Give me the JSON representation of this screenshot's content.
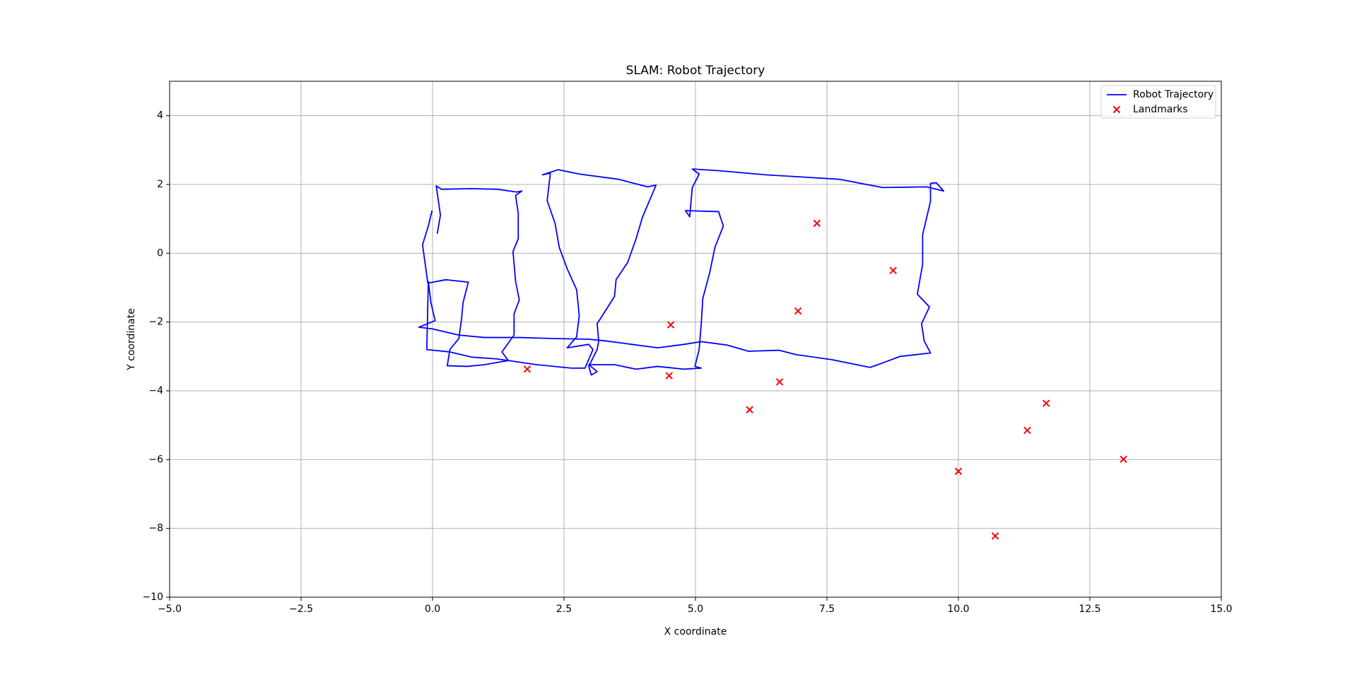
{
  "chart_data": {
    "type": "line",
    "title": "SLAM: Robot Trajectory",
    "x_label": "X coordinate",
    "y_label": "Y coordinate",
    "xlim": [
      -5,
      15
    ],
    "ylim": [
      -10,
      5
    ],
    "xticks": [
      {
        "value": -5,
        "label": "−5.0"
      },
      {
        "value": -2.5,
        "label": "−2.5"
      },
      {
        "value": 0,
        "label": "0.0"
      },
      {
        "value": 2.5,
        "label": "2.5"
      },
      {
        "value": 5,
        "label": "5.0"
      },
      {
        "value": 7.5,
        "label": "7.5"
      },
      {
        "value": 10,
        "label": "10.0"
      },
      {
        "value": 12.5,
        "label": "12.5"
      },
      {
        "value": 15,
        "label": "15.0"
      }
    ],
    "yticks": [
      {
        "value": -10,
        "label": "−10"
      },
      {
        "value": -8,
        "label": "−8"
      },
      {
        "value": -6,
        "label": "−6"
      },
      {
        "value": -4,
        "label": "−4"
      },
      {
        "value": -2,
        "label": "−2"
      },
      0,
      2,
      4
    ],
    "grid": true,
    "legend": "upper right",
    "series": [
      {
        "name": "Robot Trajectory",
        "color": "#0000ff",
        "type": "line",
        "x": [
          0.09,
          0.15,
          0.07,
          0.17,
          0.74,
          1.24,
          1.6,
          1.7,
          1.58,
          1.63,
          1.63,
          1.53,
          1.58,
          1.65,
          1.55,
          1.55,
          1.32,
          1.44,
          1.21,
          0.74,
          0.33,
          -0.11,
          -0.08,
          -0.03,
          0.05,
          -0.26,
          0.0,
          0.5,
          0.99,
          1.65,
          2.31,
          2.97,
          3.3,
          3.79,
          4.28,
          4.78,
          5.11,
          5.6,
          6.01,
          6.59,
          6.92,
          7.58,
          8.32,
          8.56,
          8.89,
          9.47,
          9.35,
          9.3,
          9.45,
          9.22,
          9.32,
          9.32,
          9.47,
          9.47,
          9.58,
          9.72,
          9.39,
          8.56,
          7.74,
          6.34,
          5.44,
          4.94,
          5.07,
          4.94,
          4.89,
          4.81,
          5.44,
          5.53,
          5.37,
          5.27,
          5.14,
          5.11,
          5.07,
          4.99,
          5.11,
          4.78,
          4.28,
          3.87,
          3.46,
          2.97,
          3.13,
          3.02,
          2.97,
          3.13,
          3.16,
          3.13,
          3.46,
          3.49,
          3.71,
          3.87,
          3.99,
          4.25,
          4.09,
          3.54,
          2.8,
          2.39,
          2.09,
          2.24,
          2.18,
          2.33,
          2.41,
          2.56,
          2.74,
          2.79,
          2.74,
          2.56,
          2.97,
          3.05,
          2.9,
          2.64,
          1.98,
          1.44,
          0.99,
          0.66,
          0.28,
          0.33,
          0.5,
          0.55,
          0.58,
          0.68,
          0.56,
          0.25,
          -0.09,
          -0.19,
          -0.08,
          -0.01
        ],
        "values": [
          0.57,
          1.11,
          1.96,
          1.86,
          1.88,
          1.86,
          1.78,
          1.81,
          1.68,
          1.16,
          0.42,
          0.05,
          -0.82,
          -1.36,
          -1.76,
          -2.38,
          -2.87,
          -3.12,
          -3.07,
          -3.02,
          -2.87,
          -2.8,
          -0.82,
          -1.44,
          -1.96,
          -2.15,
          -2.2,
          -2.38,
          -2.45,
          -2.45,
          -2.48,
          -2.5,
          -2.55,
          -2.65,
          -2.75,
          -2.65,
          -2.57,
          -2.67,
          -2.85,
          -2.82,
          -2.95,
          -3.09,
          -3.32,
          -3.19,
          -3.0,
          -2.9,
          -2.55,
          -2.05,
          -1.56,
          -1.19,
          -0.32,
          0.54,
          1.51,
          2.03,
          2.05,
          1.81,
          1.93,
          1.91,
          2.15,
          2.28,
          2.4,
          2.45,
          2.3,
          1.91,
          1.06,
          1.24,
          1.21,
          0.79,
          0.17,
          -0.57,
          -1.31,
          -2.05,
          -2.8,
          -3.29,
          -3.34,
          -3.37,
          -3.29,
          -3.37,
          -3.24,
          -3.24,
          -3.44,
          -3.54,
          -3.29,
          -2.8,
          -2.55,
          -2.05,
          -1.26,
          -0.77,
          -0.27,
          0.42,
          1.04,
          1.98,
          1.93,
          2.15,
          2.3,
          2.43,
          2.28,
          2.33,
          1.53,
          0.87,
          0.17,
          -0.45,
          -1.06,
          -1.81,
          -2.43,
          -2.75,
          -2.65,
          -2.8,
          -3.34,
          -3.34,
          -3.24,
          -3.12,
          -3.24,
          -3.29,
          -3.27,
          -2.8,
          -2.48,
          -1.93,
          -1.44,
          -0.84,
          -0.82,
          -0.77,
          -0.87,
          0.25,
          0.79,
          1.24
        ]
      },
      {
        "name": "Landmarks",
        "color": "#ff0000",
        "type": "scatter",
        "x": [
          1.8,
          4.53,
          4.5,
          6.03,
          6.6,
          6.95,
          7.31,
          8.76,
          10.0,
          10.7,
          11.31,
          11.67,
          13.14
        ],
        "values": [
          -3.37,
          -2.08,
          -3.56,
          -4.55,
          -3.74,
          -1.68,
          0.87,
          -0.5,
          -6.34,
          -8.22,
          -5.15,
          -4.36,
          -5.99
        ]
      }
    ]
  }
}
